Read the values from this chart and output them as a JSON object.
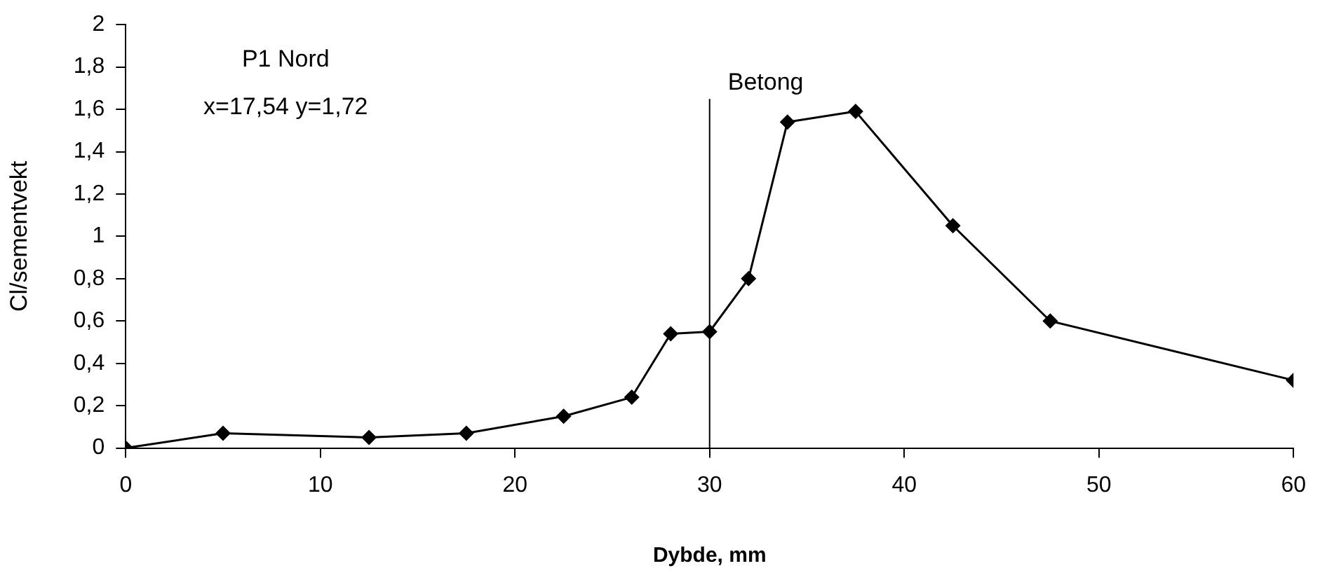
{
  "chart_data": {
    "type": "line",
    "xlabel": "Dybde, mm",
    "ylabel": "Cl/sementvekt",
    "x": [
      0,
      5,
      12.5,
      17.5,
      22.5,
      26,
      28,
      30,
      32,
      34,
      37.5,
      42.5,
      47.5,
      60
    ],
    "series": [
      {
        "color": "#000000",
        "values": [
          0,
          0.07,
          0.05,
          0.07,
          0.15,
          0.24,
          0.54,
          0.55,
          0.8,
          1.54,
          1.59,
          1.05,
          0.6,
          0.32
        ]
      }
    ],
    "xlim": [
      0,
      60
    ],
    "xticks": [
      0,
      10,
      20,
      30,
      40,
      50,
      60
    ],
    "ylim": [
      0,
      2
    ],
    "yticks": [
      0,
      {
        "value": 0.2,
        "label": "0,2"
      },
      {
        "value": 0.4,
        "label": "0,4"
      },
      {
        "value": 0.6,
        "label": "0,6"
      },
      {
        "value": 0.8,
        "label": "0,8"
      },
      1,
      {
        "value": 1.2,
        "label": "1,2"
      },
      {
        "value": 1.4,
        "label": "1,4"
      },
      {
        "value": 1.6,
        "label": "1,6"
      },
      {
        "value": 1.8,
        "label": "1,8"
      },
      2
    ],
    "ref_lines": [
      {
        "axis": "x",
        "value": 30,
        "label": "Betong",
        "color": "#000000"
      }
    ],
    "annotations": [
      "P1 Nord",
      "x=17,54 y=1,72"
    ],
    "grid": false,
    "legend": false,
    "marker": "diamond",
    "line_style": "solid"
  }
}
